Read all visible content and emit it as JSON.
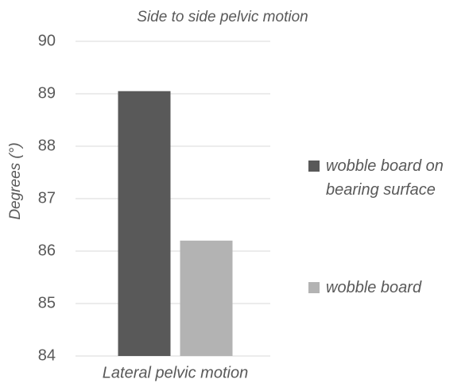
{
  "chart_data": {
    "type": "bar",
    "title": "Side to side pelvic motion",
    "y_label": "Degrees (°)",
    "categories": [
      "Lateral pelvic motion"
    ],
    "series": [
      {
        "name": "wobble board on bearing surface",
        "color": "#595959",
        "values": [
          89.05
        ]
      },
      {
        "name": "wobble board",
        "color": "#b3b3b3",
        "values": [
          86.2
        ]
      }
    ],
    "ylim": [
      84,
      90
    ],
    "yticks": [
      84,
      85,
      86,
      87,
      88,
      89,
      90
    ],
    "grid": true,
    "legend": "right"
  }
}
